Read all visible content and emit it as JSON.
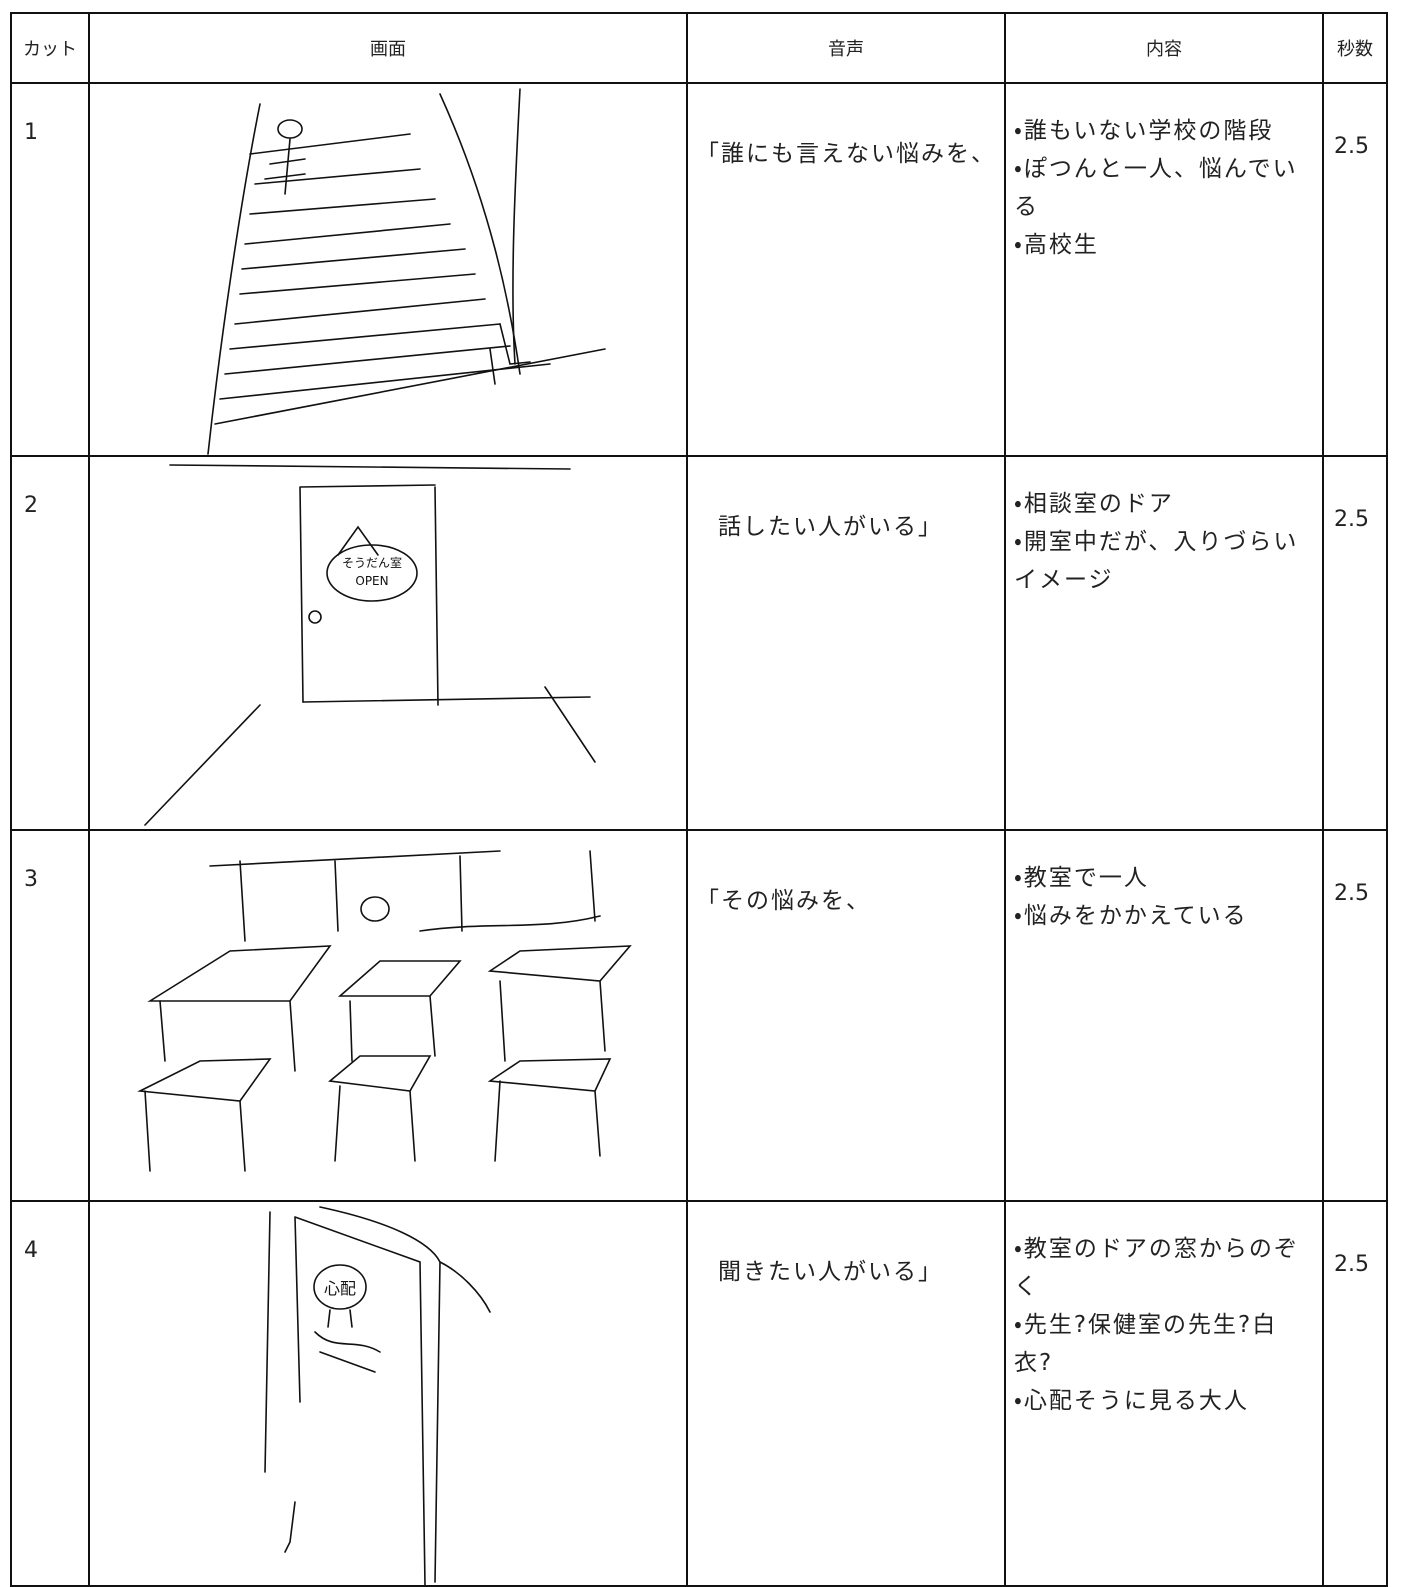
{
  "table": {
    "header": [
      "カット",
      "画面",
      "音声",
      "内容",
      "秒数"
    ],
    "rows": [
      {
        "cut": "1",
        "voice": "「誰にも言えない悩みを、",
        "content": [
          "・誰もいない学校の階段",
          "・ぽつんと一人、悩んでいる",
          "・高校生"
        ],
        "seconds": 2.5
      },
      {
        "cut": "2",
        "sketch_text": [
          "そうだん室",
          "OPEN"
        ],
        "voice": "話したい人がいる」",
        "content": [
          "・相談室のドア",
          "・開室中だが、入りづらいイメージ"
        ],
        "seconds": 2.5
      },
      {
        "cut": "3",
        "voice": "「その悩みを、",
        "content": [
          "・教室で一人",
          "・悩みをかかえている"
        ],
        "seconds": 2.5
      },
      {
        "cut": "4",
        "sketch_text": [
          "心配"
        ],
        "voice": "聞きたい人がいる」",
        "content": [
          "・教室のドアの窓からのぞく",
          "・先生?保健室の先生?白衣?",
          "・心配そうに見る大人"
        ],
        "seconds": 2.5
      }
    ]
  }
}
